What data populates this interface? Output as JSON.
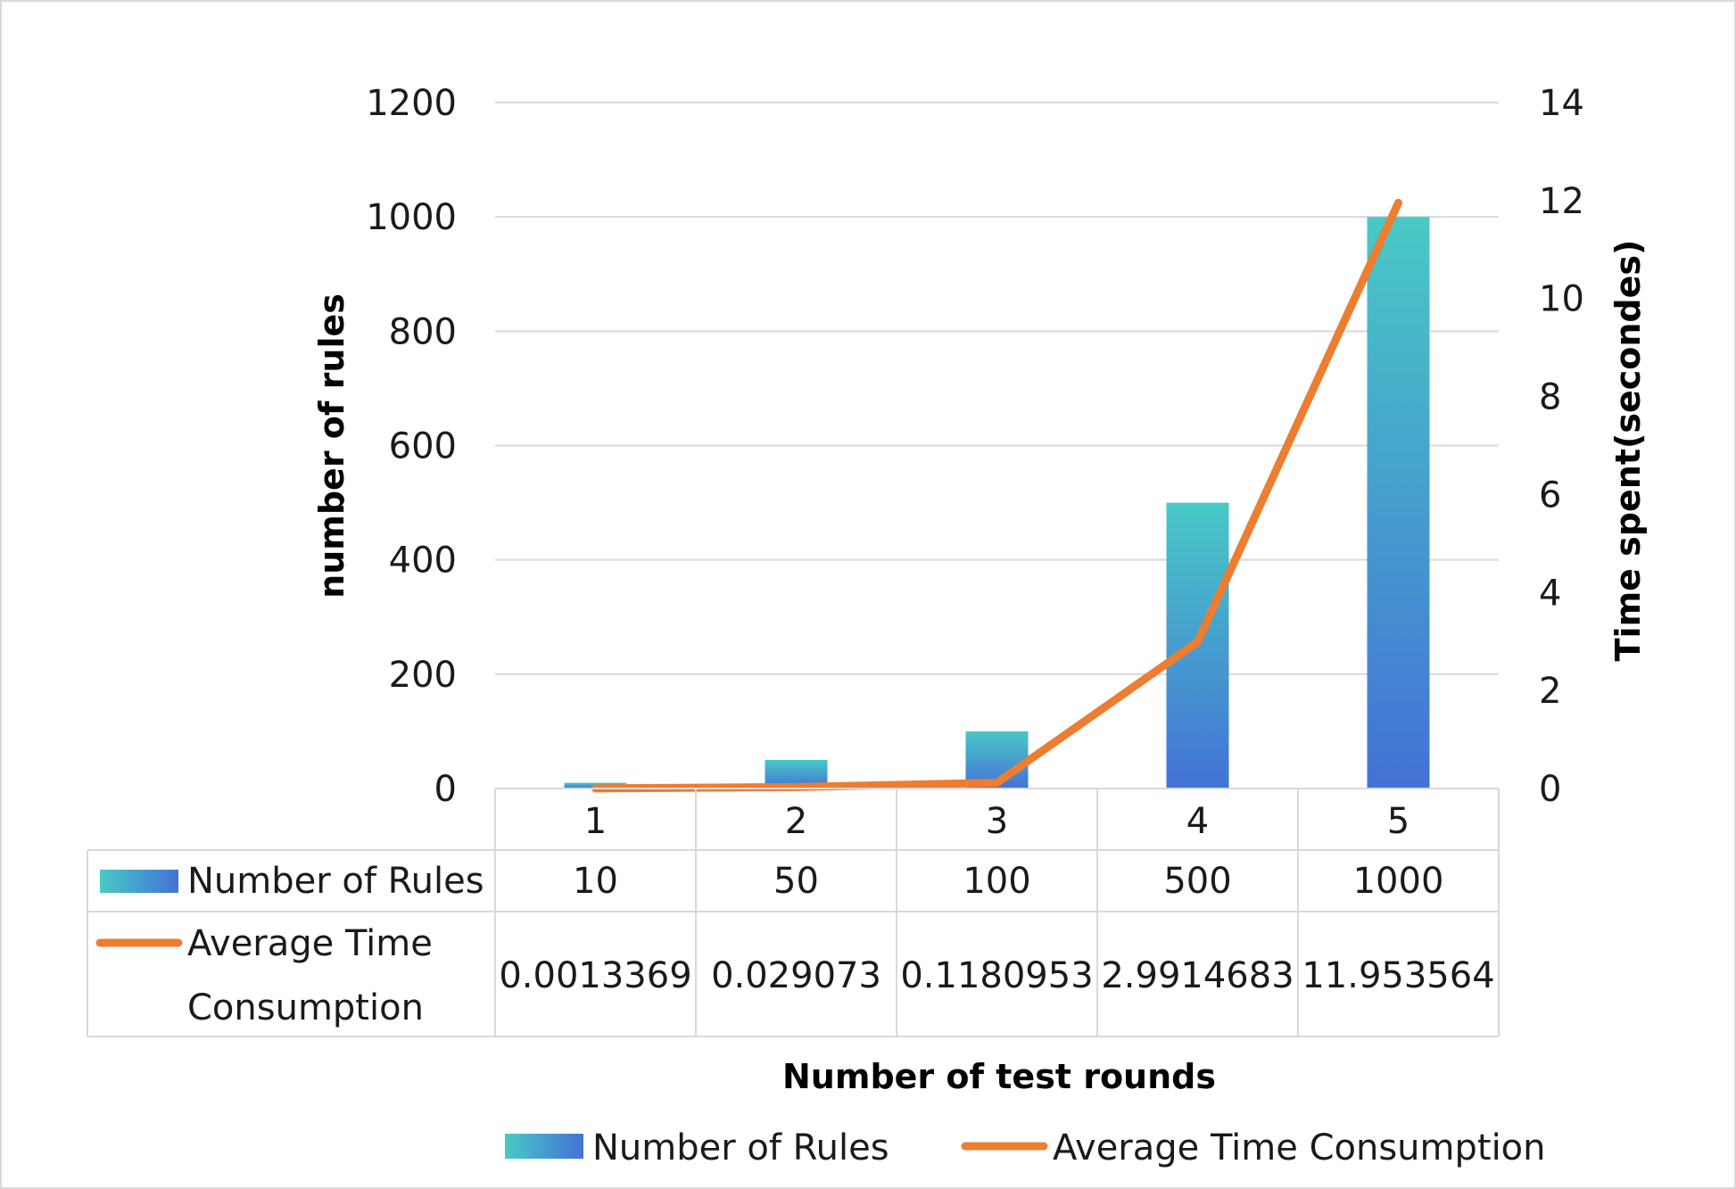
{
  "chart_data": {
    "type": "bar",
    "categories": [
      "1",
      "2",
      "3",
      "4",
      "5"
    ],
    "series": [
      {
        "name": "Number of Rules",
        "kind": "bar",
        "axis": "left",
        "values": [
          10,
          50,
          100,
          500,
          1000
        ],
        "value_labels": [
          "10",
          "50",
          "100",
          "500",
          "1000"
        ],
        "color_top": "#48c9c6",
        "color_bottom": "#4472d6"
      },
      {
        "name": "Average Time Consumption",
        "name_lines": [
          "Average Time",
          "Consumption"
        ],
        "kind": "line",
        "axis": "right",
        "values": [
          0.0013369,
          0.029073,
          0.1180953,
          2.9914683,
          11.953564
        ],
        "value_labels": [
          "0.0013369",
          "0.029073",
          "0.1180953",
          "2.9914683",
          "11.953564"
        ],
        "color": "#ed7d31"
      }
    ],
    "xlabel": "Number of test rounds",
    "ylabel": "number of rules",
    "y2label": "Time spent(secondes)",
    "ylim": [
      0,
      1200
    ],
    "y_ticks": [
      0,
      200,
      400,
      600,
      800,
      1000,
      1200
    ],
    "y2lim": [
      0,
      14
    ],
    "y2_ticks": [
      0,
      2,
      4,
      6,
      8,
      10,
      12,
      14
    ],
    "grid": true,
    "data_table": true,
    "legend_position": "bottom"
  }
}
